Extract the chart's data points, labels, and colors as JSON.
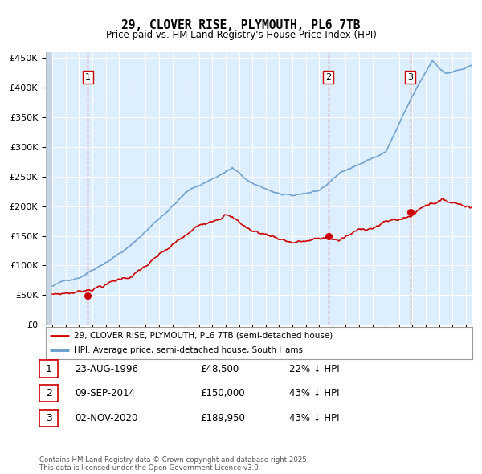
{
  "title": "29, CLOVER RISE, PLYMOUTH, PL6 7TB",
  "subtitle": "Price paid vs. HM Land Registry's House Price Index (HPI)",
  "legend_red": "29, CLOVER RISE, PLYMOUTH, PL6 7TB (semi-detached house)",
  "legend_blue": "HPI: Average price, semi-detached house, South Hams",
  "footer": "Contains HM Land Registry data © Crown copyright and database right 2025.\nThis data is licensed under the Open Government Licence v3.0.",
  "sales": [
    {
      "num": 1,
      "date": "23-AUG-1996",
      "price": 48500,
      "year": 1996.65,
      "label_price": "£48,500",
      "label_pct": "22% ↓ HPI"
    },
    {
      "num": 2,
      "date": "09-SEP-2014",
      "price": 150000,
      "year": 2014.69,
      "label_price": "£150,000",
      "label_pct": "43% ↓ HPI"
    },
    {
      "num": 3,
      "date": "02-NOV-2020",
      "price": 189950,
      "year": 2020.84,
      "label_price": "£189,950",
      "label_pct": "43% ↓ HPI"
    }
  ],
  "ylim": [
    0,
    460000
  ],
  "xlim": [
    1993.5,
    2025.5
  ],
  "yticks": [
    0,
    50000,
    100000,
    150000,
    200000,
    250000,
    300000,
    350000,
    400000,
    450000
  ],
  "ytick_labels": [
    "£0",
    "£50K",
    "£100K",
    "£150K",
    "£200K",
    "£250K",
    "£300K",
    "£350K",
    "£400K",
    "£450K"
  ],
  "xticks": [
    1994,
    1995,
    1996,
    1997,
    1998,
    1999,
    2000,
    2001,
    2002,
    2003,
    2004,
    2005,
    2006,
    2007,
    2008,
    2009,
    2010,
    2011,
    2012,
    2013,
    2014,
    2015,
    2016,
    2017,
    2018,
    2019,
    2020,
    2021,
    2022,
    2023,
    2024,
    2025
  ],
  "red_color": "#cc0000",
  "blue_color": "#6699cc",
  "bg_color": "#ddeeff",
  "grid_color": "#ffffff"
}
